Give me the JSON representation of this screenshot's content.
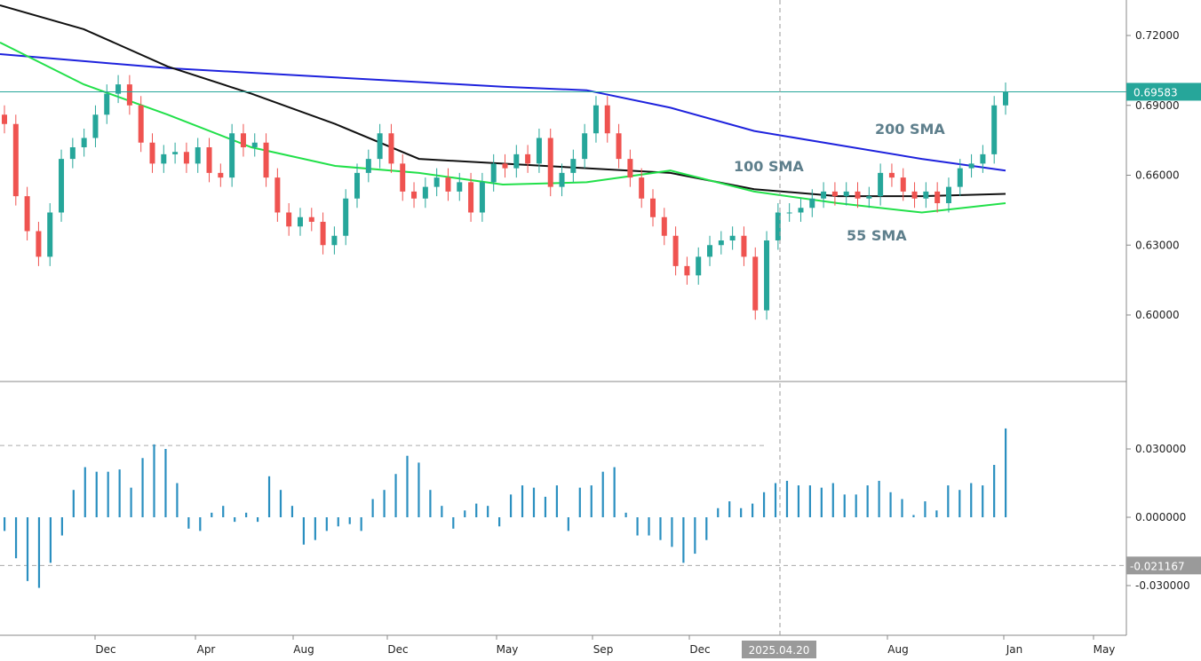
{
  "chart_data": {
    "type": "candlestick",
    "price_pane": {
      "ylim": [
        0.575,
        0.735
      ],
      "y_ticks": [
        "0.72000",
        "0.69000",
        "0.66000",
        "0.63000",
        "0.60000"
      ],
      "y_tick_values": [
        0.72,
        0.69,
        0.66,
        0.63,
        0.6
      ],
      "last_price": 0.69583,
      "last_price_label": "0.69583",
      "last_price_color": "#26a69a",
      "up_color": "#26a69a",
      "down_color": "#ef5350",
      "closes": [
        0.682,
        0.651,
        0.636,
        0.625,
        0.644,
        0.667,
        0.672,
        0.676,
        0.686,
        0.695,
        0.699,
        0.69,
        0.674,
        0.665,
        0.669,
        0.67,
        0.665,
        0.672,
        0.661,
        0.659,
        0.678,
        0.672,
        0.674,
        0.659,
        0.644,
        0.638,
        0.642,
        0.64,
        0.63,
        0.634,
        0.65,
        0.661,
        0.667,
        0.678,
        0.665,
        0.653,
        0.65,
        0.655,
        0.659,
        0.653,
        0.657,
        0.644,
        0.657,
        0.665,
        0.663,
        0.669,
        0.665,
        0.676,
        0.655,
        0.661,
        0.667,
        0.678,
        0.69,
        0.678,
        0.667,
        0.659,
        0.65,
        0.642,
        0.634,
        0.621,
        0.617,
        0.625,
        0.63,
        0.632,
        0.634,
        0.625,
        0.602,
        0.632,
        0.644,
        0.644,
        0.646,
        0.65,
        0.653,
        0.651,
        0.653,
        0.65,
        0.651,
        0.661,
        0.659,
        0.653,
        0.65,
        0.653,
        0.648,
        0.655,
        0.663,
        0.665,
        0.669,
        0.69,
        0.6958
      ],
      "sma": [
        {
          "name": "200 SMA",
          "color": "#1e22dd",
          "values": [
            0.712,
            0.709,
            0.706,
            0.704,
            0.702,
            0.7,
            0.698,
            0.6965,
            0.689,
            0.679,
            0.673,
            0.667,
            0.662
          ]
        },
        {
          "name": "100 SMA",
          "color": "#111111",
          "values": [
            0.733,
            0.7227,
            0.7067,
            0.695,
            0.682,
            0.667,
            0.665,
            0.663,
            0.661,
            0.654,
            0.651,
            0.651,
            0.652
          ]
        },
        {
          "name": "55 SMA",
          "color": "#22e04a",
          "values": [
            0.717,
            0.699,
            0.686,
            0.672,
            0.664,
            0.661,
            0.656,
            0.657,
            0.662,
            0.653,
            0.648,
            0.644,
            0.648
          ]
        }
      ]
    },
    "indicator_pane": {
      "type": "histogram",
      "ylim": [
        -0.045,
        0.052
      ],
      "y_ticks": [
        "0.030000",
        "0.000000",
        "-0.030000"
      ],
      "y_tick_values": [
        0.03,
        0.0,
        -0.03
      ],
      "color": "#2a8fc0",
      "marker_value": -0.021167,
      "marker_label": "-0.021167",
      "upper_dashed_level": 0.0315,
      "values": [
        -0.006,
        -0.018,
        -0.028,
        -0.031,
        -0.02,
        -0.008,
        0.012,
        0.022,
        0.02,
        0.02,
        0.021,
        0.013,
        0.026,
        0.032,
        0.03,
        0.015,
        -0.005,
        -0.006,
        0.002,
        0.005,
        -0.002,
        0.002,
        -0.002,
        0.018,
        0.012,
        0.005,
        -0.012,
        -0.01,
        -0.006,
        -0.004,
        -0.003,
        -0.006,
        0.008,
        0.012,
        0.019,
        0.027,
        0.024,
        0.012,
        0.005,
        -0.005,
        0.003,
        0.006,
        0.005,
        -0.004,
        0.01,
        0.014,
        0.013,
        0.009,
        0.014,
        -0.006,
        0.013,
        0.014,
        0.02,
        0.022,
        0.002,
        -0.008,
        -0.008,
        -0.01,
        -0.013,
        -0.02,
        -0.016,
        -0.01,
        0.004,
        0.007,
        0.004,
        0.006,
        0.011,
        0.015,
        0.016,
        0.014,
        0.014,
        0.013,
        0.015,
        0.01,
        0.01,
        0.014,
        0.016,
        0.011,
        0.008,
        0.001,
        0.007,
        0.003,
        0.014,
        0.012,
        0.015,
        0.014,
        0.023,
        0.039
      ]
    },
    "x_ticks": [
      "Dec",
      "Apr",
      "Aug",
      "Dec",
      "May",
      "Sep",
      "Dec",
      "Aug",
      "Jan",
      "May"
    ],
    "crosshair_date": "2025.04.20",
    "grid": false
  }
}
